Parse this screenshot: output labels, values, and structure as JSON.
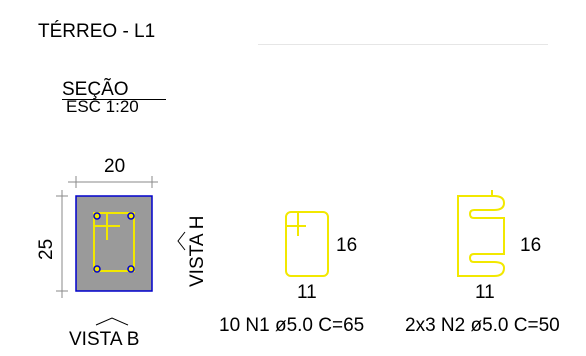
{
  "header": {
    "title": "TÉRREO - L1"
  },
  "section": {
    "label": "SEÇÃO",
    "scale": "ESC 1:20"
  },
  "column": {
    "width_label": "20",
    "height_label": "25",
    "view_h_label": "VISTA H",
    "view_b_label": "VISTA B"
  },
  "stirrup_n1": {
    "height_label": "16",
    "width_label": "11",
    "caption": "10 N1 ø5.0 C=65"
  },
  "stirrup_n2": {
    "height_label": "16",
    "width_label": "11",
    "caption": "2x3 N2 ø5.0 C=50"
  },
  "colors": {
    "concrete_fill": "#9a9a9a",
    "outline": "#0000cc",
    "rebar": "#f2e800",
    "dimension_line": "#8a8a8a"
  }
}
